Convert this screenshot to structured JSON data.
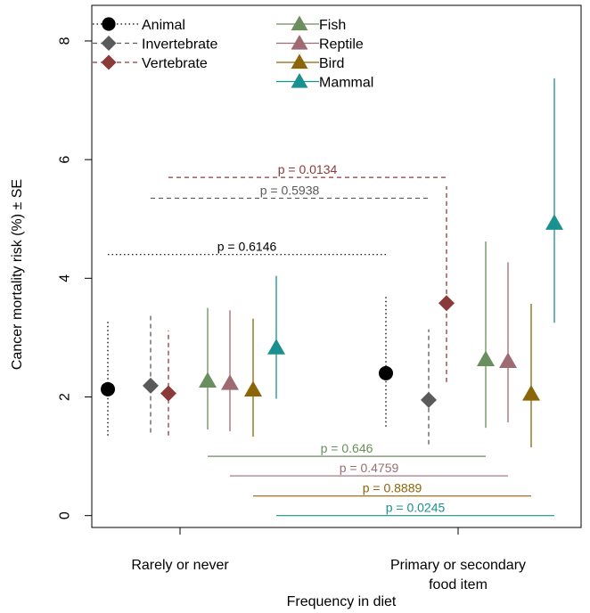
{
  "chart_data": {
    "type": "scatter",
    "xlabel": "Frequency in diet",
    "ylabel": "Cancer mortality risk (%) ± SE",
    "ylim": [
      -0.2,
      8.6
    ],
    "yticks": [
      0,
      2,
      4,
      6,
      8
    ],
    "categories": [
      {
        "label_lines": [
          "Rarely or never"
        ]
      },
      {
        "label_lines": [
          "Primary or secondary",
          "food item"
        ]
      }
    ],
    "series": [
      {
        "name": "Animal",
        "color": "#000000",
        "marker": "circle",
        "line": "dotted",
        "points": [
          {
            "group": 0,
            "y": 2.13,
            "lo": 1.35,
            "hi": 3.3
          },
          {
            "group": 1,
            "y": 2.4,
            "lo": 1.5,
            "hi": 3.73
          }
        ]
      },
      {
        "name": "Invertebrate",
        "color": "#5a5a5a",
        "marker": "diamond",
        "line": "dashed",
        "points": [
          {
            "group": 0,
            "y": 2.19,
            "lo": 1.4,
            "hi": 3.42
          },
          {
            "group": 1,
            "y": 1.95,
            "lo": 1.2,
            "hi": 3.14
          }
        ]
      },
      {
        "name": "Vertebrate",
        "color": "#8b3a3a",
        "marker": "diamond",
        "line": "dashed",
        "points": [
          {
            "group": 0,
            "y": 2.06,
            "lo": 1.35,
            "hi": 3.12
          },
          {
            "group": 1,
            "y": 3.58,
            "lo": 2.25,
            "hi": 5.55
          }
        ]
      },
      {
        "name": "Fish",
        "color": "#6b8e5e",
        "marker": "triangle",
        "line": "solid",
        "points": [
          {
            "group": 0,
            "y": 2.27,
            "lo": 1.45,
            "hi": 3.5
          },
          {
            "group": 1,
            "y": 2.63,
            "lo": 1.48,
            "hi": 4.62
          }
        ]
      },
      {
        "name": "Reptile",
        "color": "#9e6b73",
        "marker": "triangle",
        "line": "solid",
        "points": [
          {
            "group": 0,
            "y": 2.23,
            "lo": 1.42,
            "hi": 3.46
          },
          {
            "group": 1,
            "y": 2.6,
            "lo": 1.57,
            "hi": 4.27
          }
        ]
      },
      {
        "name": "Bird",
        "color": "#8b6508",
        "marker": "triangle",
        "line": "solid",
        "points": [
          {
            "group": 0,
            "y": 2.12,
            "lo": 1.33,
            "hi": 3.32
          },
          {
            "group": 1,
            "y": 2.05,
            "lo": 1.15,
            "hi": 3.57
          }
        ]
      },
      {
        "name": "Mammal",
        "color": "#1a9090",
        "marker": "triangle",
        "line": "solid",
        "points": [
          {
            "group": 0,
            "y": 2.83,
            "lo": 1.97,
            "hi": 4.04
          },
          {
            "group": 1,
            "y": 4.93,
            "lo": 3.25,
            "hi": 7.37
          }
        ]
      }
    ],
    "comparisons": [
      {
        "series": "Vertebrate",
        "y": 5.7,
        "label": "p =  0.0134"
      },
      {
        "series": "Invertebrate",
        "y": 5.35,
        "label": "p =  0.5938"
      },
      {
        "series": "Animal",
        "y": 4.4,
        "label": "p =  0.6146"
      },
      {
        "series": "Fish",
        "y": 1.0,
        "label": "p =  0.646"
      },
      {
        "series": "Reptile",
        "y": 0.67,
        "label": "p =  0.4759"
      },
      {
        "series": "Bird",
        "y": 0.33,
        "label": "p =  0.8889"
      },
      {
        "series": "Mammal",
        "y": 0.0,
        "label": "p =  0.0245"
      }
    ],
    "legend": [
      {
        "column": 0,
        "entries": [
          "Animal",
          "Invertebrate",
          "Vertebrate"
        ]
      },
      {
        "column": 1,
        "entries": [
          "Fish",
          "Reptile",
          "Bird",
          "Mammal"
        ]
      }
    ]
  }
}
